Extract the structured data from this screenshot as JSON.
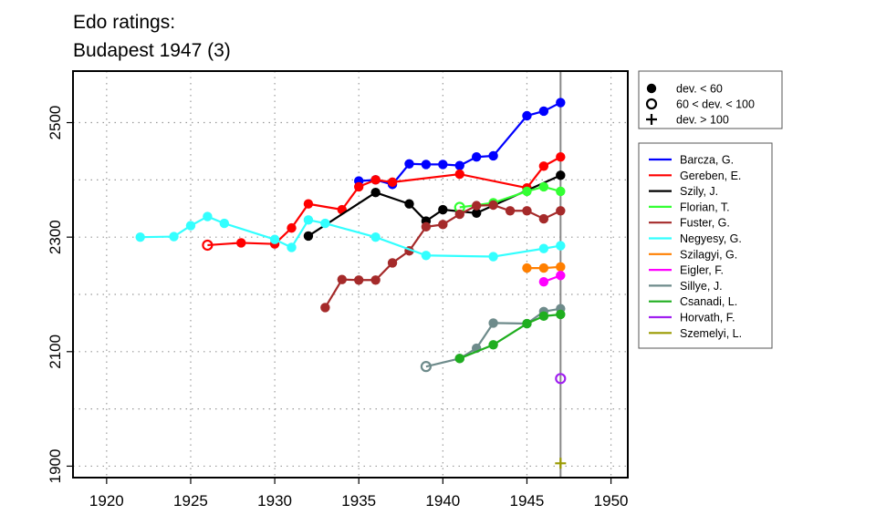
{
  "chart_data": {
    "type": "line",
    "title": "Edo ratings:",
    "subtitle": "Budapest 1947 (3)",
    "xlabel": "",
    "ylabel": "",
    "xlim": [
      1918,
      1951
    ],
    "ylim": [
      1880,
      2590
    ],
    "xticks": [
      1920,
      1925,
      1930,
      1935,
      1940,
      1945,
      1950
    ],
    "yticks": [
      1900,
      2100,
      2300,
      2500
    ],
    "ygrid": [
      1900,
      2000,
      2100,
      2200,
      2300,
      2400,
      2500
    ],
    "grid": true,
    "vline_x": 1947,
    "marker_legend": [
      {
        "label": "dev. < 60",
        "symbol": "filled-circle"
      },
      {
        "label": "60 < dev. < 100",
        "symbol": "open-circle"
      },
      {
        "label": "dev. > 100",
        "symbol": "plus"
      }
    ],
    "legend_position": "right",
    "series": [
      {
        "name": "Barcza, G.",
        "color": "#0000ff",
        "points": [
          {
            "x": 1935,
            "y": 2398,
            "m": "f"
          },
          {
            "x": 1936,
            "y": 2400,
            "m": "f"
          },
          {
            "x": 1937,
            "y": 2392,
            "m": "f"
          },
          {
            "x": 1938,
            "y": 2428,
            "m": "f"
          },
          {
            "x": 1939,
            "y": 2427,
            "m": "f"
          },
          {
            "x": 1940,
            "y": 2427,
            "m": "f"
          },
          {
            "x": 1941,
            "y": 2425,
            "m": "f"
          },
          {
            "x": 1942,
            "y": 2440,
            "m": "f"
          },
          {
            "x": 1943,
            "y": 2442,
            "m": "f"
          },
          {
            "x": 1945,
            "y": 2512,
            "m": "f"
          },
          {
            "x": 1946,
            "y": 2520,
            "m": "f"
          },
          {
            "x": 1947,
            "y": 2535,
            "m": "f"
          }
        ]
      },
      {
        "name": "Gereben, E.",
        "color": "#ff0000",
        "points": [
          {
            "x": 1926,
            "y": 2286,
            "m": "o"
          },
          {
            "x": 1928,
            "y": 2290,
            "m": "f"
          },
          {
            "x": 1930,
            "y": 2288,
            "m": "f"
          },
          {
            "x": 1931,
            "y": 2316,
            "m": "f"
          },
          {
            "x": 1932,
            "y": 2358,
            "m": "f"
          },
          {
            "x": 1934,
            "y": 2348,
            "m": "f"
          },
          {
            "x": 1935,
            "y": 2388,
            "m": "f"
          },
          {
            "x": 1936,
            "y": 2400,
            "m": "f"
          },
          {
            "x": 1937,
            "y": 2396,
            "m": "f"
          },
          {
            "x": 1941,
            "y": 2410,
            "m": "f"
          },
          {
            "x": 1945,
            "y": 2386,
            "m": "f"
          },
          {
            "x": 1946,
            "y": 2424,
            "m": "f"
          },
          {
            "x": 1947,
            "y": 2440,
            "m": "f"
          }
        ]
      },
      {
        "name": "Szily, J.",
        "color": "#000000",
        "points": [
          {
            "x": 1932,
            "y": 2302,
            "m": "f"
          },
          {
            "x": 1936,
            "y": 2378,
            "m": "f"
          },
          {
            "x": 1938,
            "y": 2358,
            "m": "f"
          },
          {
            "x": 1939,
            "y": 2328,
            "m": "f"
          },
          {
            "x": 1940,
            "y": 2348,
            "m": "f"
          },
          {
            "x": 1942,
            "y": 2342,
            "m": "f"
          },
          {
            "x": 1947,
            "y": 2408,
            "m": "f"
          }
        ]
      },
      {
        "name": "Florian, T.",
        "color": "#33ff33",
        "points": [
          {
            "x": 1941,
            "y": 2352,
            "m": "o"
          },
          {
            "x": 1943,
            "y": 2360,
            "m": "f"
          },
          {
            "x": 1945,
            "y": 2380,
            "m": "f"
          },
          {
            "x": 1946,
            "y": 2388,
            "m": "f"
          },
          {
            "x": 1947,
            "y": 2380,
            "m": "f"
          }
        ]
      },
      {
        "name": "Fuster, G.",
        "color": "#a52a2a",
        "points": [
          {
            "x": 1933,
            "y": 2177,
            "m": "f"
          },
          {
            "x": 1934,
            "y": 2226,
            "m": "f"
          },
          {
            "x": 1935,
            "y": 2225,
            "m": "f"
          },
          {
            "x": 1936,
            "y": 2225,
            "m": "f"
          },
          {
            "x": 1937,
            "y": 2255,
            "m": "f"
          },
          {
            "x": 1938,
            "y": 2276,
            "m": "f"
          },
          {
            "x": 1939,
            "y": 2318,
            "m": "f"
          },
          {
            "x": 1940,
            "y": 2322,
            "m": "f"
          },
          {
            "x": 1941,
            "y": 2340,
            "m": "f"
          },
          {
            "x": 1942,
            "y": 2355,
            "m": "f"
          },
          {
            "x": 1943,
            "y": 2356,
            "m": "f"
          },
          {
            "x": 1944,
            "y": 2346,
            "m": "f"
          },
          {
            "x": 1945,
            "y": 2346,
            "m": "f"
          },
          {
            "x": 1946,
            "y": 2332,
            "m": "f"
          },
          {
            "x": 1947,
            "y": 2346,
            "m": "f"
          }
        ]
      },
      {
        "name": "Negyesy, G.",
        "color": "#33ffff",
        "points": [
          {
            "x": 1922,
            "y": 2300,
            "m": "f"
          },
          {
            "x": 1924,
            "y": 2301,
            "m": "f"
          },
          {
            "x": 1925,
            "y": 2320,
            "m": "f"
          },
          {
            "x": 1926,
            "y": 2336,
            "m": "f"
          },
          {
            "x": 1927,
            "y": 2324,
            "m": "f"
          },
          {
            "x": 1930,
            "y": 2296,
            "m": "f"
          },
          {
            "x": 1931,
            "y": 2282,
            "m": "f"
          },
          {
            "x": 1932,
            "y": 2330,
            "m": "f"
          },
          {
            "x": 1933,
            "y": 2324,
            "m": "f"
          },
          {
            "x": 1936,
            "y": 2300,
            "m": "f"
          },
          {
            "x": 1939,
            "y": 2268,
            "m": "f"
          },
          {
            "x": 1943,
            "y": 2266,
            "m": "f"
          },
          {
            "x": 1946,
            "y": 2280,
            "m": "f"
          },
          {
            "x": 1947,
            "y": 2285,
            "m": "f"
          }
        ]
      },
      {
        "name": "Szilagyi, G.",
        "color": "#ff7f00",
        "points": [
          {
            "x": 1945,
            "y": 2246,
            "m": "f"
          },
          {
            "x": 1946,
            "y": 2246,
            "m": "f"
          },
          {
            "x": 1947,
            "y": 2248,
            "m": "f"
          }
        ]
      },
      {
        "name": "Eigler, F.",
        "color": "#ff00ff",
        "points": [
          {
            "x": 1946,
            "y": 2222,
            "m": "f"
          },
          {
            "x": 1947,
            "y": 2233,
            "m": "f"
          }
        ]
      },
      {
        "name": "Sillye, J.",
        "color": "#6e8b8b",
        "points": [
          {
            "x": 1939,
            "y": 2074,
            "m": "o"
          },
          {
            "x": 1941,
            "y": 2088,
            "m": "f"
          },
          {
            "x": 1942,
            "y": 2106,
            "m": "f"
          },
          {
            "x": 1943,
            "y": 2150,
            "m": "f"
          },
          {
            "x": 1945,
            "y": 2149,
            "m": "f"
          },
          {
            "x": 1946,
            "y": 2170,
            "m": "f"
          },
          {
            "x": 1947,
            "y": 2175,
            "m": "f"
          }
        ]
      },
      {
        "name": "Csanadi, L.",
        "color": "#1fae1f",
        "points": [
          {
            "x": 1941,
            "y": 2088,
            "m": "f"
          },
          {
            "x": 1943,
            "y": 2112,
            "m": "f"
          },
          {
            "x": 1945,
            "y": 2149,
            "m": "f"
          },
          {
            "x": 1946,
            "y": 2162,
            "m": "f"
          },
          {
            "x": 1947,
            "y": 2165,
            "m": "f"
          }
        ]
      },
      {
        "name": "Horvath, F.",
        "color": "#a020f0",
        "points": [
          {
            "x": 1947,
            "y": 2053,
            "m": "o"
          }
        ]
      },
      {
        "name": "Szemelyi, L.",
        "color": "#9a9a00",
        "points": [
          {
            "x": 1947,
            "y": 1905,
            "m": "p"
          }
        ]
      }
    ]
  }
}
